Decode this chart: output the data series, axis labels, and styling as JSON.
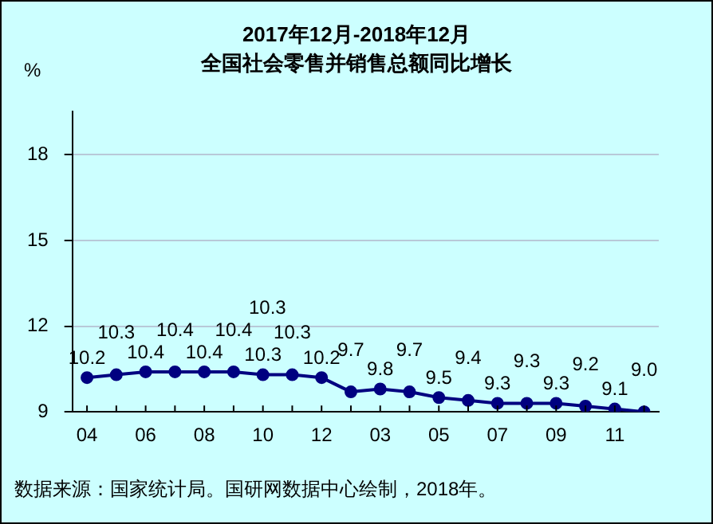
{
  "chart_data": {
    "type": "line",
    "title": "2017年12月-2018年12月",
    "subtitle": "全国社会零售并销售总额同比增长",
    "ylabel": "%",
    "categories": [
      "04",
      null,
      "06",
      null,
      "08",
      null,
      "10",
      null,
      "12",
      null,
      "03",
      null,
      "05",
      null,
      "07",
      null,
      "09",
      null,
      "11",
      null
    ],
    "series": [
      {
        "color": "#000080",
        "values": [
          10.2,
          10.3,
          10.4,
          10.4,
          10.4,
          10.4,
          10.3,
          10.3,
          10.2,
          9.7,
          9.8,
          9.7,
          9.5,
          9.4,
          9.3,
          9.3,
          9.3,
          9.2,
          9.1,
          9.0
        ],
        "value_labels": [
          "10.2",
          "10.3",
          "10.4",
          "10.4",
          "10.4",
          "10.4",
          "10.3",
          "10.3",
          "10.2",
          "9.7",
          "9.8",
          "9.7",
          "9.5",
          "9.4",
          "9.3",
          "9.3",
          "9.3",
          "9.2",
          "9.1",
          "9.0"
        ]
      }
    ],
    "ylim": [
      9,
      19.5
    ],
    "yticks": [
      9,
      12,
      15,
      18
    ],
    "grid": "y",
    "legend": false,
    "marker": "circle",
    "line_style": "solid",
    "annotations": [
      "10.3",
      "数据来源：国家统计局。国研网数据中心绘制，2018年。"
    ]
  }
}
